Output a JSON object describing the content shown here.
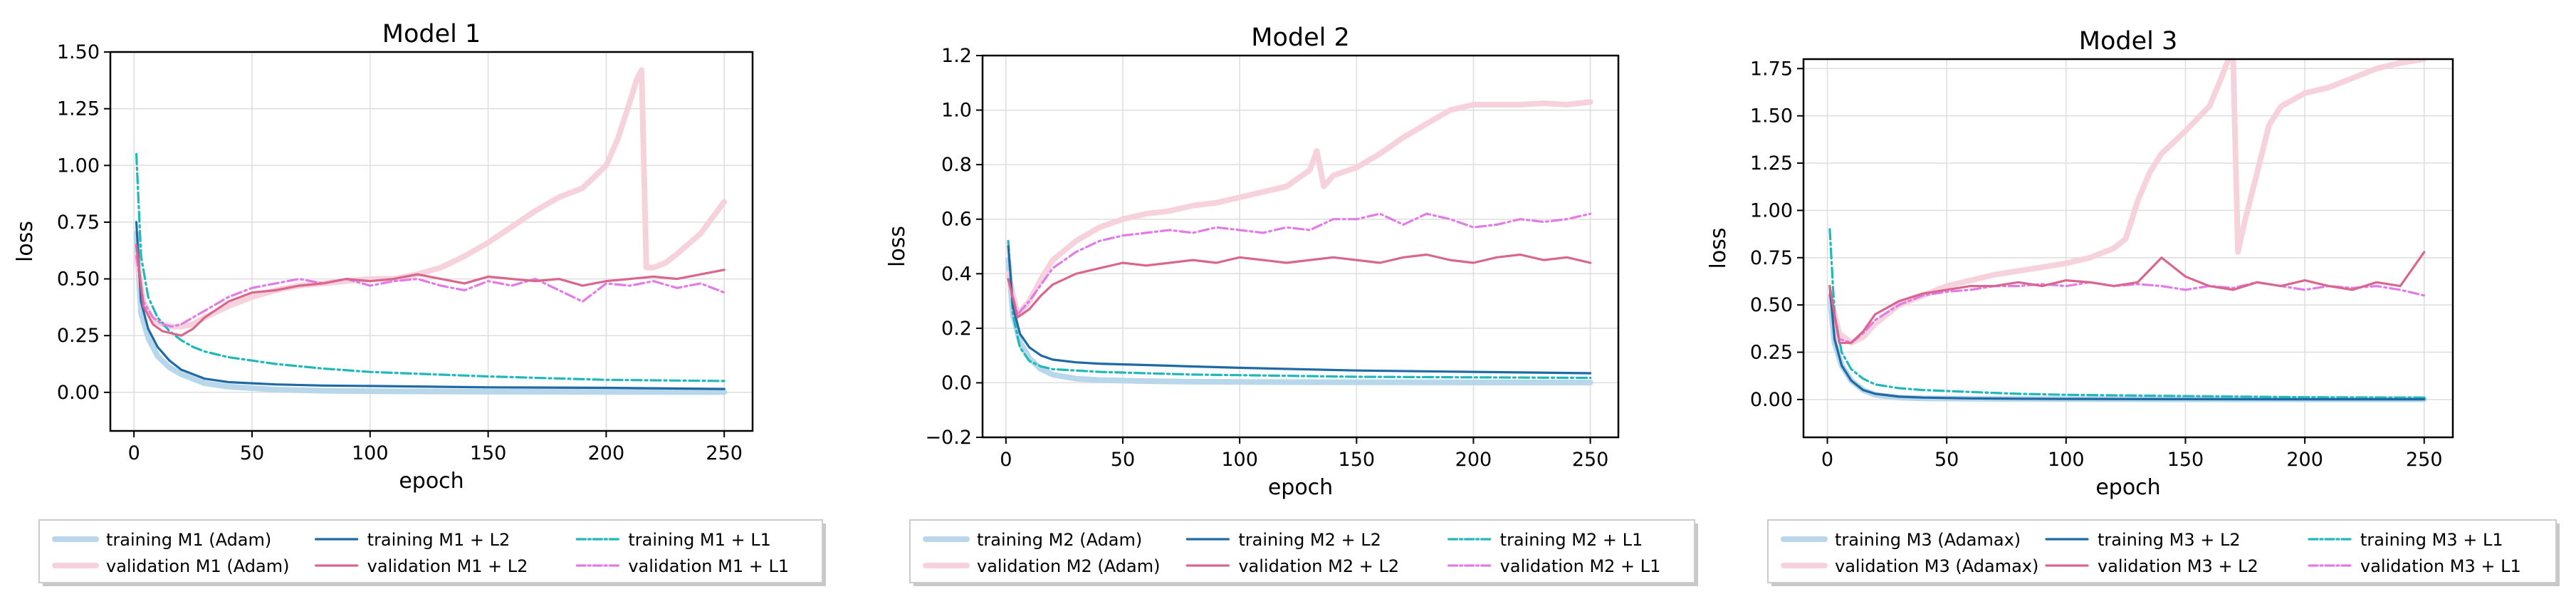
{
  "colors": {
    "train_base": "#b9d7ea",
    "val_base": "#f6d3dc",
    "train_l2": "#1f6aa5",
    "val_l2": "#d9668f",
    "train_l1": "#20b8b8",
    "val_l1": "#e37be6",
    "grid": "#dddddd"
  },
  "chart_data": [
    {
      "type": "line",
      "title": "Model 1",
      "xlabel": "epoch",
      "ylabel": "loss",
      "xlim": [
        -10,
        262
      ],
      "ylim": [
        -0.17,
        1.5
      ],
      "xticks": [
        0,
        50,
        100,
        150,
        200,
        250
      ],
      "yticks": [
        0.0,
        0.25,
        0.5,
        0.75,
        1.0,
        1.25,
        1.5
      ],
      "ytick_labels": [
        "0.00",
        "0.25",
        "0.50",
        "0.75",
        "1.00",
        "1.25",
        "1.50"
      ],
      "legend_position": "bottom",
      "series": [
        {
          "name": "training M1 (Adam)",
          "role": "train_base",
          "x": [
            1,
            3,
            6,
            10,
            15,
            20,
            30,
            40,
            60,
            80,
            100,
            150,
            200,
            250
          ],
          "y": [
            0.7,
            0.35,
            0.24,
            0.16,
            0.11,
            0.08,
            0.04,
            0.025,
            0.012,
            0.007,
            0.005,
            0.003,
            0.002,
            0.001
          ]
        },
        {
          "name": "validation M1 (Adam)",
          "role": "val_base",
          "x": [
            1,
            4,
            8,
            12,
            16,
            20,
            25,
            30,
            40,
            50,
            60,
            70,
            80,
            90,
            100,
            110,
            120,
            130,
            140,
            150,
            160,
            170,
            180,
            190,
            200,
            205,
            210,
            213,
            215,
            217,
            220,
            225,
            230,
            240,
            250
          ],
          "y": [
            0.6,
            0.4,
            0.32,
            0.3,
            0.29,
            0.29,
            0.3,
            0.33,
            0.38,
            0.42,
            0.45,
            0.47,
            0.48,
            0.49,
            0.5,
            0.5,
            0.52,
            0.55,
            0.6,
            0.66,
            0.73,
            0.8,
            0.86,
            0.9,
            1.0,
            1.12,
            1.28,
            1.38,
            1.42,
            0.55,
            0.55,
            0.57,
            0.61,
            0.7,
            0.84
          ]
        },
        {
          "name": "training M1 + L2",
          "role": "train_l2",
          "x": [
            1,
            3,
            6,
            10,
            15,
            20,
            30,
            40,
            50,
            60,
            80,
            100,
            150,
            200,
            250
          ],
          "y": [
            0.75,
            0.4,
            0.28,
            0.2,
            0.14,
            0.1,
            0.06,
            0.045,
            0.04,
            0.035,
            0.03,
            0.028,
            0.022,
            0.02,
            0.015
          ]
        },
        {
          "name": "validation M1 + L2",
          "role": "val_l2",
          "x": [
            1,
            4,
            8,
            12,
            16,
            20,
            25,
            30,
            40,
            50,
            60,
            70,
            80,
            90,
            100,
            110,
            120,
            130,
            140,
            150,
            160,
            170,
            180,
            190,
            200,
            210,
            220,
            230,
            240,
            250
          ],
          "y": [
            0.65,
            0.38,
            0.3,
            0.27,
            0.26,
            0.25,
            0.28,
            0.33,
            0.4,
            0.44,
            0.45,
            0.47,
            0.48,
            0.5,
            0.49,
            0.5,
            0.52,
            0.5,
            0.48,
            0.51,
            0.5,
            0.49,
            0.5,
            0.47,
            0.49,
            0.5,
            0.51,
            0.5,
            0.52,
            0.54
          ]
        },
        {
          "name": "training M1 + L1",
          "role": "train_l1",
          "x": [
            1,
            3,
            6,
            10,
            15,
            20,
            25,
            30,
            40,
            50,
            60,
            80,
            100,
            150,
            200,
            250
          ],
          "y": [
            1.05,
            0.6,
            0.42,
            0.33,
            0.27,
            0.23,
            0.2,
            0.18,
            0.155,
            0.14,
            0.125,
            0.105,
            0.09,
            0.07,
            0.055,
            0.05
          ]
        },
        {
          "name": "validation M1 + L1",
          "role": "val_l1",
          "x": [
            1,
            4,
            8,
            12,
            16,
            20,
            25,
            30,
            40,
            50,
            60,
            70,
            80,
            90,
            100,
            110,
            120,
            130,
            140,
            150,
            160,
            170,
            180,
            190,
            200,
            210,
            220,
            230,
            240,
            250
          ],
          "y": [
            0.6,
            0.4,
            0.33,
            0.3,
            0.29,
            0.3,
            0.33,
            0.36,
            0.42,
            0.46,
            0.48,
            0.5,
            0.48,
            0.5,
            0.47,
            0.49,
            0.5,
            0.47,
            0.45,
            0.49,
            0.47,
            0.5,
            0.45,
            0.4,
            0.48,
            0.47,
            0.49,
            0.46,
            0.48,
            0.44
          ]
        }
      ],
      "legend_rows": [
        [
          "training M1 (Adam)",
          "training M1 + L2",
          "training M1 + L1"
        ],
        [
          "validation M1 (Adam)",
          "validation M1 + L2",
          "validation M1 + L1"
        ]
      ]
    },
    {
      "type": "line",
      "title": "Model 2",
      "xlabel": "epoch",
      "ylabel": "loss",
      "xlim": [
        -10,
        262
      ],
      "ylim": [
        -0.2,
        1.2
      ],
      "xticks": [
        0,
        50,
        100,
        150,
        200,
        250
      ],
      "yticks": [
        -0.2,
        0.0,
        0.2,
        0.4,
        0.6,
        0.8,
        1.0,
        1.2
      ],
      "ytick_labels": [
        "−0.2",
        "0.0",
        "0.2",
        "0.4",
        "0.6",
        "0.8",
        "1.0",
        "1.2"
      ],
      "legend_position": "bottom",
      "series": [
        {
          "name": "training M2 (Adam)",
          "role": "train_base",
          "x": [
            1,
            3,
            6,
            10,
            15,
            20,
            30,
            40,
            60,
            80,
            100,
            150,
            200,
            250
          ],
          "y": [
            0.45,
            0.25,
            0.15,
            0.09,
            0.05,
            0.03,
            0.015,
            0.01,
            0.006,
            0.004,
            0.003,
            0.002,
            0.001,
            0.001
          ]
        },
        {
          "name": "validation M2 (Adam)",
          "role": "val_base",
          "x": [
            1,
            5,
            10,
            15,
            20,
            30,
            40,
            50,
            60,
            70,
            80,
            90,
            100,
            110,
            120,
            130,
            133,
            136,
            140,
            150,
            160,
            170,
            180,
            190,
            200,
            210,
            220,
            230,
            240,
            250
          ],
          "y": [
            0.4,
            0.25,
            0.3,
            0.38,
            0.45,
            0.52,
            0.57,
            0.6,
            0.62,
            0.63,
            0.65,
            0.66,
            0.68,
            0.7,
            0.72,
            0.78,
            0.85,
            0.72,
            0.76,
            0.79,
            0.84,
            0.9,
            0.95,
            1.0,
            1.02,
            1.02,
            1.02,
            1.025,
            1.02,
            1.03
          ]
        },
        {
          "name": "training M2 + L2",
          "role": "train_l2",
          "x": [
            1,
            3,
            6,
            10,
            15,
            20,
            30,
            40,
            60,
            80,
            100,
            150,
            200,
            250
          ],
          "y": [
            0.5,
            0.28,
            0.18,
            0.13,
            0.1,
            0.085,
            0.075,
            0.07,
            0.065,
            0.06,
            0.055,
            0.045,
            0.04,
            0.035
          ]
        },
        {
          "name": "validation M2 + L2",
          "role": "val_l2",
          "x": [
            1,
            5,
            10,
            15,
            20,
            30,
            40,
            50,
            60,
            70,
            80,
            90,
            100,
            110,
            120,
            130,
            140,
            150,
            160,
            170,
            180,
            190,
            200,
            210,
            220,
            230,
            240,
            250
          ],
          "y": [
            0.38,
            0.24,
            0.27,
            0.32,
            0.36,
            0.4,
            0.42,
            0.44,
            0.43,
            0.44,
            0.45,
            0.44,
            0.46,
            0.45,
            0.44,
            0.45,
            0.46,
            0.45,
            0.44,
            0.46,
            0.47,
            0.45,
            0.44,
            0.46,
            0.47,
            0.45,
            0.46,
            0.44
          ]
        },
        {
          "name": "training M2 + L1",
          "role": "train_l1",
          "x": [
            1,
            3,
            6,
            10,
            15,
            20,
            30,
            40,
            60,
            80,
            100,
            150,
            200,
            250
          ],
          "y": [
            0.52,
            0.25,
            0.13,
            0.08,
            0.06,
            0.05,
            0.045,
            0.04,
            0.035,
            0.03,
            0.028,
            0.022,
            0.02,
            0.018
          ]
        },
        {
          "name": "validation M2 + L1",
          "role": "val_l1",
          "x": [
            1,
            5,
            10,
            15,
            20,
            30,
            40,
            50,
            60,
            70,
            80,
            90,
            100,
            110,
            120,
            130,
            140,
            150,
            160,
            170,
            180,
            190,
            200,
            210,
            220,
            230,
            240,
            250
          ],
          "y": [
            0.38,
            0.25,
            0.3,
            0.36,
            0.42,
            0.48,
            0.52,
            0.54,
            0.55,
            0.56,
            0.55,
            0.57,
            0.56,
            0.55,
            0.57,
            0.56,
            0.6,
            0.6,
            0.62,
            0.58,
            0.62,
            0.6,
            0.57,
            0.58,
            0.6,
            0.59,
            0.6,
            0.62
          ]
        }
      ],
      "legend_rows": [
        [
          "training M2 (Adam)",
          "training M2 + L2",
          "training M2 + L1"
        ],
        [
          "validation M2 (Adam)",
          "validation M2 + L2",
          "validation M2 + L1"
        ]
      ]
    },
    {
      "type": "line",
      "title": "Model 3",
      "xlabel": "epoch",
      "ylabel": "loss",
      "xlim": [
        -10,
        262
      ],
      "ylim": [
        -0.2,
        1.8
      ],
      "xticks": [
        0,
        50,
        100,
        150,
        200,
        250
      ],
      "yticks": [
        0.0,
        0.25,
        0.5,
        0.75,
        1.0,
        1.25,
        1.5,
        1.75
      ],
      "ytick_labels": [
        "0.00",
        "0.25",
        "0.50",
        "0.75",
        "1.00",
        "1.25",
        "1.50",
        "1.75"
      ],
      "legend_position": "bottom",
      "series": [
        {
          "name": "training M3 (Adamax)",
          "role": "train_base",
          "x": [
            1,
            3,
            6,
            10,
            15,
            20,
            30,
            40,
            60,
            80,
            100,
            150,
            200,
            250
          ],
          "y": [
            0.55,
            0.3,
            0.18,
            0.1,
            0.05,
            0.025,
            0.01,
            0.006,
            0.004,
            0.003,
            0.002,
            0.001,
            0.001,
            0.001
          ]
        },
        {
          "name": "validation M3 (Adamax)",
          "role": "val_base",
          "x": [
            1,
            5,
            10,
            15,
            20,
            30,
            40,
            50,
            60,
            70,
            80,
            90,
            100,
            110,
            120,
            125,
            130,
            135,
            140,
            150,
            160,
            165,
            168,
            170,
            172,
            175,
            180,
            185,
            190,
            200,
            210,
            220,
            230,
            240,
            250
          ],
          "y": [
            0.55,
            0.35,
            0.3,
            0.33,
            0.4,
            0.5,
            0.55,
            0.6,
            0.63,
            0.66,
            0.68,
            0.7,
            0.72,
            0.75,
            0.8,
            0.85,
            1.05,
            1.2,
            1.3,
            1.42,
            1.55,
            1.7,
            1.8,
            1.8,
            0.78,
            0.95,
            1.2,
            1.45,
            1.55,
            1.62,
            1.65,
            1.7,
            1.75,
            1.78,
            1.8
          ]
        },
        {
          "name": "training M3 + L2",
          "role": "train_l2",
          "x": [
            1,
            3,
            6,
            10,
            15,
            20,
            30,
            40,
            60,
            80,
            100,
            150,
            200,
            250
          ],
          "y": [
            0.6,
            0.32,
            0.18,
            0.1,
            0.05,
            0.03,
            0.015,
            0.01,
            0.006,
            0.004,
            0.003,
            0.002,
            0.001,
            0.001
          ]
        },
        {
          "name": "validation M3 + L2",
          "role": "val_l2",
          "x": [
            1,
            5,
            10,
            15,
            20,
            30,
            40,
            50,
            60,
            70,
            80,
            90,
            100,
            110,
            120,
            130,
            140,
            150,
            160,
            170,
            180,
            190,
            200,
            210,
            220,
            230,
            240,
            250
          ],
          "y": [
            0.6,
            0.3,
            0.3,
            0.36,
            0.45,
            0.52,
            0.56,
            0.58,
            0.6,
            0.6,
            0.62,
            0.6,
            0.63,
            0.62,
            0.6,
            0.62,
            0.75,
            0.65,
            0.6,
            0.58,
            0.62,
            0.6,
            0.63,
            0.6,
            0.58,
            0.62,
            0.6,
            0.78
          ]
        },
        {
          "name": "training M3 + L1",
          "role": "train_l1",
          "x": [
            1,
            3,
            6,
            10,
            15,
            20,
            30,
            40,
            60,
            80,
            100,
            150,
            200,
            250
          ],
          "y": [
            0.9,
            0.45,
            0.25,
            0.16,
            0.11,
            0.08,
            0.06,
            0.05,
            0.04,
            0.03,
            0.025,
            0.018,
            0.012,
            0.01
          ]
        },
        {
          "name": "validation M3 + L1",
          "role": "val_l1",
          "x": [
            1,
            5,
            10,
            15,
            20,
            30,
            40,
            50,
            60,
            70,
            80,
            90,
            100,
            110,
            120,
            130,
            140,
            150,
            160,
            170,
            180,
            190,
            200,
            210,
            220,
            230,
            240,
            250
          ],
          "y": [
            0.55,
            0.32,
            0.3,
            0.35,
            0.42,
            0.5,
            0.55,
            0.57,
            0.58,
            0.6,
            0.6,
            0.61,
            0.6,
            0.62,
            0.6,
            0.61,
            0.6,
            0.58,
            0.6,
            0.59,
            0.62,
            0.6,
            0.58,
            0.6,
            0.59,
            0.6,
            0.58,
            0.55
          ]
        }
      ],
      "legend_rows": [
        [
          "training M3 (Adamax)",
          "training M3 + L2",
          "training M3 + L1"
        ],
        [
          "validation M3 (Adamax)",
          "validation M3 + L2",
          "validation M3 + L1"
        ]
      ]
    }
  ]
}
